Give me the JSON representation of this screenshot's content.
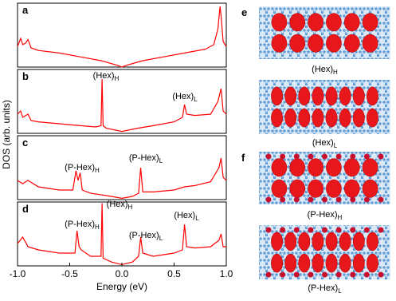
{
  "chart_data": [
    {
      "type": "line",
      "label": "a",
      "xlim": [
        -1,
        1
      ],
      "ylim": [
        0,
        1
      ],
      "x": [
        -1,
        -0.97,
        -0.95,
        -0.92,
        -0.9,
        -0.87,
        -0.8,
        -0.6,
        -0.4,
        -0.2,
        -0.05,
        0,
        0.05,
        0.2,
        0.4,
        0.6,
        0.8,
        0.88,
        0.92,
        0.94,
        0.95,
        0.97,
        1.0
      ],
      "values": [
        0.32,
        0.45,
        0.35,
        0.38,
        0.43,
        0.3,
        0.26,
        0.22,
        0.16,
        0.1,
        0.03,
        0,
        0.03,
        0.1,
        0.16,
        0.22,
        0.28,
        0.35,
        0.6,
        0.95,
        0.8,
        0.4,
        0.32
      ],
      "color": "#ff0000",
      "annotations": []
    },
    {
      "type": "line",
      "label": "b",
      "xlim": [
        -1,
        1
      ],
      "ylim": [
        0,
        1
      ],
      "x": [
        -1,
        -0.97,
        -0.95,
        -0.9,
        -0.87,
        -0.8,
        -0.6,
        -0.4,
        -0.25,
        -0.2,
        -0.19,
        -0.18,
        -0.15,
        0,
        0.15,
        0.3,
        0.5,
        0.58,
        0.6,
        0.62,
        0.7,
        0.85,
        0.92,
        0.95,
        0.97,
        1.0
      ],
      "values": [
        0.3,
        0.35,
        0.25,
        0.3,
        0.2,
        0.18,
        0.15,
        0.12,
        0.1,
        0.12,
        0.85,
        0.12,
        0.08,
        0.03,
        0.08,
        0.12,
        0.18,
        0.25,
        0.45,
        0.3,
        0.28,
        0.3,
        0.5,
        0.7,
        0.35,
        0.3
      ],
      "color": "#ff0000",
      "annotations": [
        {
          "text": "(Hex)",
          "sub": "H"
        },
        {
          "text": "(Hex)",
          "sub": "L"
        }
      ]
    },
    {
      "type": "line",
      "label": "c",
      "xlim": [
        -1,
        1
      ],
      "ylim": [
        0,
        1
      ],
      "x": [
        -1,
        -0.95,
        -0.9,
        -0.8,
        -0.6,
        -0.47,
        -0.44,
        -0.42,
        -0.4,
        -0.38,
        -0.3,
        -0.1,
        0,
        0.1,
        0.16,
        0.18,
        0.2,
        0.3,
        0.5,
        0.6,
        0.7,
        0.85,
        0.93,
        0.95,
        0.97,
        1.0
      ],
      "values": [
        0.3,
        0.25,
        0.3,
        0.2,
        0.15,
        0.15,
        0.45,
        0.3,
        0.42,
        0.15,
        0.1,
        0.05,
        0.02,
        0.05,
        0.1,
        0.5,
        0.12,
        0.12,
        0.15,
        0.2,
        0.22,
        0.28,
        0.5,
        0.65,
        0.35,
        0.3
      ],
      "color": "#ff0000",
      "annotations": [
        {
          "text": "(P-Hex)",
          "sub": "H"
        },
        {
          "text": "(P-Hex)",
          "sub": "L"
        }
      ]
    },
    {
      "type": "line",
      "label": "d",
      "xlim": [
        -1,
        1
      ],
      "ylim": [
        0,
        1
      ],
      "xticks": [
        {
          "value": -1,
          "label": "-1.0"
        },
        -0.5,
        {
          "value": 0,
          "label": "0.0"
        },
        0.5,
        {
          "value": 1,
          "label": "1.0"
        }
      ],
      "xlabel": "Energy (eV)",
      "x": [
        -1,
        -0.95,
        -0.9,
        -0.8,
        -0.6,
        -0.45,
        -0.43,
        -0.41,
        -0.39,
        -0.3,
        -0.2,
        -0.19,
        -0.18,
        -0.1,
        0,
        0.1,
        0.16,
        0.18,
        0.2,
        0.3,
        0.5,
        0.58,
        0.6,
        0.62,
        0.7,
        0.85,
        0.93,
        0.95,
        0.97,
        1.0
      ],
      "values": [
        0.35,
        0.45,
        0.3,
        0.25,
        0.2,
        0.2,
        0.55,
        0.3,
        0.25,
        0.15,
        0.15,
        0.98,
        0.12,
        0.06,
        0.02,
        0.06,
        0.15,
        0.45,
        0.2,
        0.15,
        0.2,
        0.25,
        0.65,
        0.3,
        0.28,
        0.3,
        0.4,
        0.5,
        0.3,
        0.3
      ],
      "color": "#ff0000",
      "annotations": [
        {
          "text": "(Hex)",
          "sub": "H"
        },
        {
          "text": "(P-Hex)",
          "sub": "H"
        },
        {
          "text": "(P-Hex)",
          "sub": "L"
        },
        {
          "text": "(Hex)",
          "sub": "L"
        }
      ]
    }
  ],
  "ylabel": "DOS (arb. units)",
  "images": [
    {
      "label": "e",
      "captions": [
        {
          "text": "(Hex)",
          "sub": "H"
        },
        {
          "text": "(Hex)",
          "sub": "L"
        }
      ]
    },
    {
      "label": "f",
      "captions": [
        {
          "text": "(P-Hex)",
          "sub": "H"
        },
        {
          "text": "(P-Hex)",
          "sub": "L"
        }
      ]
    }
  ]
}
